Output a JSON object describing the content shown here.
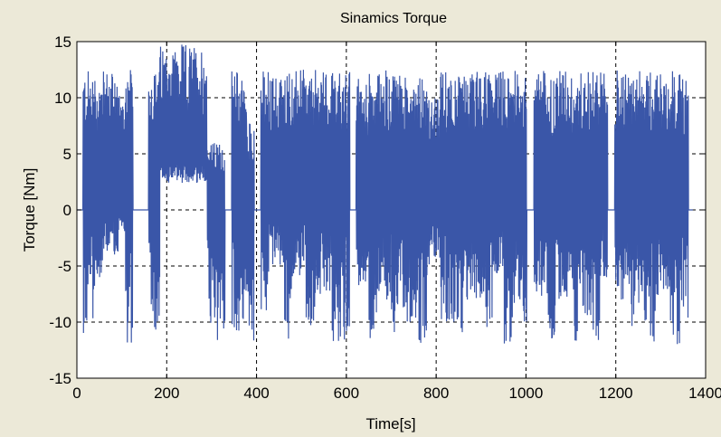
{
  "window": {
    "background": "#ece9d8"
  },
  "chart_data": {
    "type": "line",
    "title": "Sinamics Torque",
    "xlabel": "Time[s]",
    "ylabel": "Torque [Nm]",
    "xlim": [
      0,
      1400
    ],
    "ylim": [
      -15,
      15
    ],
    "xticks": [
      0,
      200,
      400,
      600,
      800,
      1000,
      1200,
      1400
    ],
    "yticks": [
      -15,
      -10,
      -5,
      0,
      5,
      10,
      15
    ],
    "xtick_labels": [
      "0",
      "200",
      "400",
      "600",
      "800",
      "1000",
      "1200",
      "1400"
    ],
    "ytick_labels": [
      "-15",
      "-10",
      "-5",
      "0",
      "5",
      "10",
      "15"
    ],
    "grid": true,
    "grid_style": "dashed",
    "legend": false,
    "line_color": "#3a56a8",
    "series": [
      {
        "bursts": [
          {
            "t0": 0,
            "t1": 14,
            "min": 0,
            "max": 0
          },
          {
            "t0": 14,
            "t1": 40,
            "min": -11,
            "max": 12.5
          },
          {
            "t0": 40,
            "t1": 58,
            "min": -6,
            "max": 12
          },
          {
            "t0": 58,
            "t1": 92,
            "min": -4,
            "max": 12.5
          },
          {
            "t0": 92,
            "t1": 108,
            "min": -2,
            "max": 11
          },
          {
            "t0": 108,
            "t1": 125,
            "min": -12,
            "max": 12.5
          },
          {
            "t0": 125,
            "t1": 160,
            "min": 0,
            "max": 0
          },
          {
            "t0": 160,
            "t1": 185,
            "min": -11,
            "max": 12.5
          },
          {
            "t0": 185,
            "t1": 290,
            "min": 2,
            "max": 14.8
          },
          {
            "t0": 290,
            "t1": 330,
            "min": -12,
            "max": 6
          },
          {
            "t0": 330,
            "t1": 345,
            "min": 0,
            "max": 0
          },
          {
            "t0": 345,
            "t1": 378,
            "min": -11,
            "max": 12.5
          },
          {
            "t0": 378,
            "t1": 395,
            "min": -12,
            "max": 8
          },
          {
            "t0": 395,
            "t1": 410,
            "min": 0,
            "max": 0
          },
          {
            "t0": 410,
            "t1": 428,
            "min": -10,
            "max": 12.5
          },
          {
            "t0": 428,
            "t1": 462,
            "min": -5,
            "max": 12
          },
          {
            "t0": 462,
            "t1": 478,
            "min": -12,
            "max": 12.5
          },
          {
            "t0": 478,
            "t1": 510,
            "min": -6,
            "max": 12.5
          },
          {
            "t0": 510,
            "t1": 530,
            "min": -12,
            "max": 12
          },
          {
            "t0": 530,
            "t1": 568,
            "min": -8,
            "max": 12.5
          },
          {
            "t0": 568,
            "t1": 585,
            "min": -12,
            "max": 12.5
          },
          {
            "t0": 585,
            "t1": 608,
            "min": -12,
            "max": 12.5
          },
          {
            "t0": 608,
            "t1": 622,
            "min": 0,
            "max": 0
          },
          {
            "t0": 622,
            "t1": 650,
            "min": -7,
            "max": 12
          },
          {
            "t0": 650,
            "t1": 672,
            "min": -12,
            "max": 12.5
          },
          {
            "t0": 672,
            "t1": 700,
            "min": -8,
            "max": 12.5
          },
          {
            "t0": 700,
            "t1": 720,
            "min": -12,
            "max": 12.5
          },
          {
            "t0": 720,
            "t1": 760,
            "min": -10,
            "max": 12
          },
          {
            "t0": 760,
            "t1": 780,
            "min": -12,
            "max": 12.5
          },
          {
            "t0": 780,
            "t1": 810,
            "min": -5,
            "max": 10
          },
          {
            "t0": 810,
            "t1": 850,
            "min": -10,
            "max": 12.5
          },
          {
            "t0": 850,
            "t1": 875,
            "min": -12,
            "max": 12
          },
          {
            "t0": 875,
            "t1": 905,
            "min": -8,
            "max": 12.5
          },
          {
            "t0": 905,
            "t1": 925,
            "min": -12,
            "max": 12.5
          },
          {
            "t0": 925,
            "t1": 950,
            "min": -6,
            "max": 12.5
          },
          {
            "t0": 950,
            "t1": 972,
            "min": -12,
            "max": 12.5
          },
          {
            "t0": 972,
            "t1": 1002,
            "min": -10,
            "max": 12.5
          },
          {
            "t0": 1002,
            "t1": 1018,
            "min": 0,
            "max": 0
          },
          {
            "t0": 1018,
            "t1": 1048,
            "min": -8,
            "max": 12.5
          },
          {
            "t0": 1048,
            "t1": 1068,
            "min": -12,
            "max": 12
          },
          {
            "t0": 1068,
            "t1": 1100,
            "min": -8,
            "max": 12.5
          },
          {
            "t0": 1100,
            "t1": 1120,
            "min": -12,
            "max": 12
          },
          {
            "t0": 1120,
            "t1": 1148,
            "min": -10,
            "max": 12.5
          },
          {
            "t0": 1148,
            "t1": 1165,
            "min": -12,
            "max": 12.5
          },
          {
            "t0": 1165,
            "t1": 1182,
            "min": -6,
            "max": 12.5
          },
          {
            "t0": 1182,
            "t1": 1198,
            "min": 0,
            "max": 0
          },
          {
            "t0": 1198,
            "t1": 1228,
            "min": -8,
            "max": 12.5
          },
          {
            "t0": 1228,
            "t1": 1248,
            "min": -12,
            "max": 12
          },
          {
            "t0": 1248,
            "t1": 1272,
            "min": -10,
            "max": 12.5
          },
          {
            "t0": 1272,
            "t1": 1292,
            "min": -12,
            "max": 12.5
          },
          {
            "t0": 1292,
            "t1": 1320,
            "min": -8,
            "max": 12.5
          },
          {
            "t0": 1320,
            "t1": 1345,
            "min": -12,
            "max": 12.5
          },
          {
            "t0": 1345,
            "t1": 1362,
            "min": -10,
            "max": 12
          },
          {
            "t0": 1362,
            "t1": 1372,
            "min": 0,
            "max": 0
          }
        ]
      }
    ]
  }
}
